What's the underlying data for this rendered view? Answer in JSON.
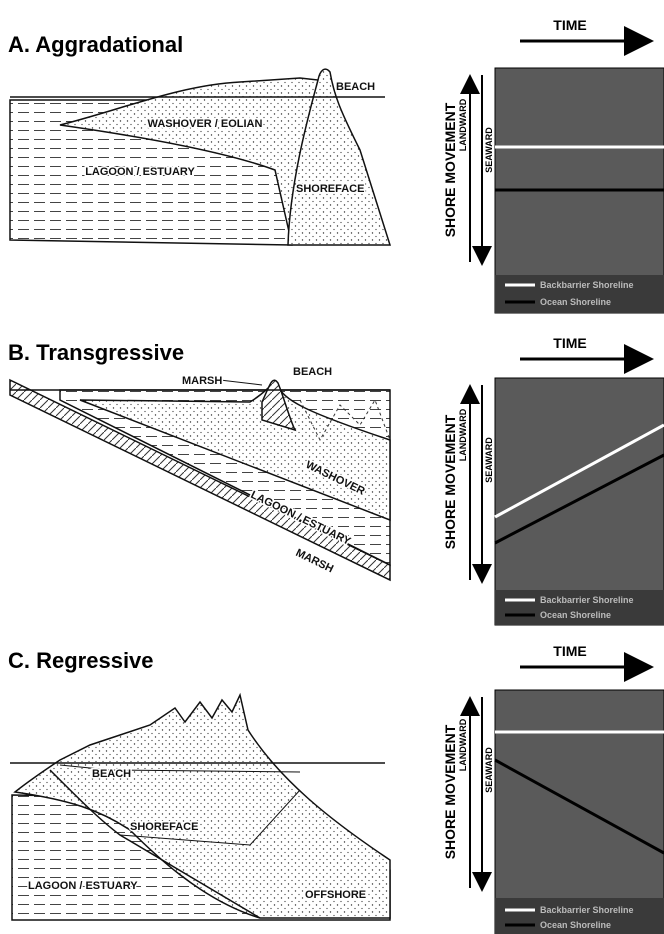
{
  "panels": [
    {
      "title": "A. Aggradational",
      "section_labels": [
        "BEACH",
        "WASHOVER / EOLIAN",
        "LAGOON / ESTUARY",
        "SHOREFACE"
      ],
      "time_label": "TIME",
      "axis_label": "SHORE MOVEMENT",
      "landward_label": "LANDWARD",
      "seaward_label": "SEAWARD",
      "legend": [
        "Backbarrier Shoreline",
        "Ocean Shoreline"
      ]
    },
    {
      "title": "B. Transgressive",
      "section_labels": [
        "MARSH",
        "BEACH",
        "WASHOVER",
        "LAGOON / ESTUARY",
        "MARSH"
      ],
      "time_label": "TIME",
      "axis_label": "SHORE MOVEMENT",
      "landward_label": "LANDWARD",
      "seaward_label": "SEAWARD",
      "legend": [
        "Backbarrier Shoreline",
        "Ocean Shoreline"
      ]
    },
    {
      "title": "C. Regressive",
      "section_labels": [
        "BEACH",
        "SHOREFACE",
        "LAGOON / ESTUARY",
        "OFFSHORE"
      ],
      "time_label": "TIME",
      "axis_label": "SHORE MOVEMENT",
      "landward_label": "LANDWARD",
      "seaward_label": "SEAWARD",
      "legend": [
        "Backbarrier Shoreline",
        "Ocean Shoreline"
      ]
    }
  ]
}
